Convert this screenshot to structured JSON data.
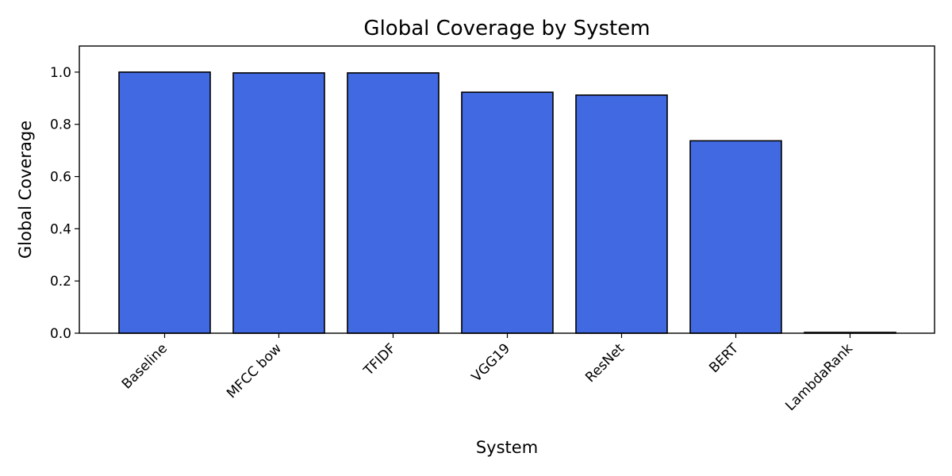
{
  "chart_data": {
    "type": "bar",
    "title": "Global Coverage by System",
    "xlabel": "System",
    "ylabel": "Global Coverage",
    "categories": [
      "Baseline",
      "MFCC bow",
      "TFIDF",
      "VGG19",
      "ResNet",
      "BERT",
      "LambdaRank"
    ],
    "values": [
      1.0,
      0.997,
      0.997,
      0.923,
      0.912,
      0.737,
      0.003
    ],
    "ylim": [
      0,
      1.1
    ],
    "yticks": [
      "0.0",
      "0.2",
      "0.4",
      "0.6",
      "0.8",
      "1.0"
    ],
    "grid": false,
    "legend": "none",
    "bar_color": "#4169e1",
    "edge_color": "#000000"
  }
}
